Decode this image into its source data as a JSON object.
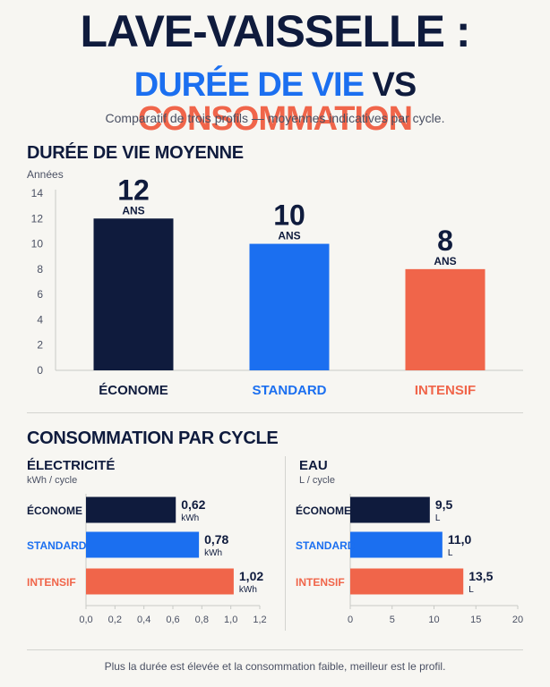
{
  "header": {
    "title_line1": "LAVE-VAISSELLE :",
    "title_line2_part1": "DURÉE DE VIE",
    "title_line2_part2": "VS",
    "title_line2_part3": "CONSOMMATION",
    "subtitle": "Comparatif de trois profils — moyennes indicatives par cycle."
  },
  "colors": {
    "navy": "#0f1b3d",
    "blue": "#1b6ff0",
    "orange": "#f0654a"
  },
  "chart_data": [
    {
      "type": "bar",
      "title": "DURÉE DE VIE MOYENNE",
      "ylabel": "Années",
      "ylim": [
        0,
        14
      ],
      "yticks": [
        "0",
        "2",
        "4",
        "6",
        "8",
        "10",
        "12",
        "14"
      ],
      "categories": [
        "ÉCONOME",
        "STANDARD",
        "INTENSIF"
      ],
      "values": [
        12,
        10,
        8
      ],
      "value_labels": [
        "12",
        "10",
        "8"
      ],
      "unit_label": "ANS",
      "bar_colors": [
        "#0f1b3d",
        "#1b6ff0",
        "#f0654a"
      ],
      "grid": false
    },
    {
      "type": "bar",
      "orientation": "horizontal",
      "group_title": "CONSOMMATION PAR CYCLE",
      "title": "ÉLECTRICITÉ",
      "xlabel": "kWh / cycle",
      "xlim": [
        0,
        1.2
      ],
      "xticks": [
        "0,0",
        "0,2",
        "0,4",
        "0,6",
        "0,8",
        "1,0",
        "1,2"
      ],
      "categories": [
        "ÉCONOME",
        "STANDARD",
        "INTENSIF"
      ],
      "values": [
        0.62,
        0.78,
        1.02
      ],
      "value_labels": [
        "0,62",
        "0,78",
        "1,02"
      ],
      "unit_label": "kWh",
      "bar_colors": [
        "#0f1b3d",
        "#1b6ff0",
        "#f0654a"
      ]
    },
    {
      "type": "bar",
      "orientation": "horizontal",
      "title": "EAU",
      "xlabel": "L / cycle",
      "xlim": [
        0,
        20
      ],
      "xticks": [
        "0",
        "5",
        "10",
        "15",
        "20"
      ],
      "categories": [
        "ÉCONOME",
        "STANDARD",
        "INTENSIF"
      ],
      "values": [
        9.5,
        11.0,
        13.5
      ],
      "value_labels": [
        "9,5",
        "11,0",
        "13,5"
      ],
      "unit_label": "L",
      "bar_colors": [
        "#0f1b3d",
        "#1b6ff0",
        "#f0654a"
      ]
    }
  ],
  "footer": "Plus la durée est élevée et la consommation faible, meilleur est le profil."
}
